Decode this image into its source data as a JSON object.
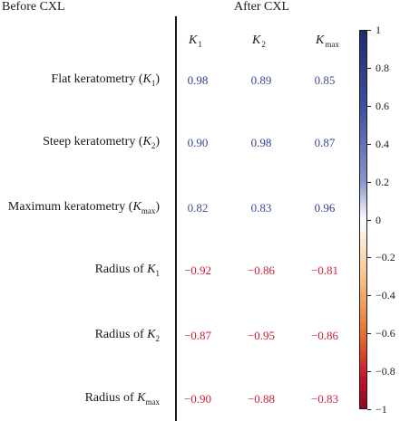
{
  "headers": {
    "left": "Before CXL",
    "right": "After CXL"
  },
  "columns": [
    {
      "base": "K",
      "sub": "1"
    },
    {
      "base": "K",
      "sub": "2"
    },
    {
      "base": "K",
      "sub": "max"
    }
  ],
  "rows": [
    {
      "prefix": "Flat keratometry (",
      "var": "K",
      "sub": "1",
      "suffix": ")"
    },
    {
      "prefix": "Steep keratometry (",
      "var": "K",
      "sub": "2",
      "suffix": ")"
    },
    {
      "prefix": "Maximum keratometry (",
      "var": "K",
      "sub": "max",
      "suffix": ")"
    },
    {
      "prefix": "Radius of ",
      "var": "K",
      "sub": "1",
      "suffix": ""
    },
    {
      "prefix": "Radius of ",
      "var": "K",
      "sub": "2",
      "suffix": ""
    },
    {
      "prefix": "Radius of ",
      "var": "K",
      "sub": "max",
      "suffix": ""
    }
  ],
  "chart_data": {
    "type": "table",
    "values": [
      [
        0.98,
        0.89,
        0.85
      ],
      [
        0.9,
        0.98,
        0.87
      ],
      [
        0.82,
        0.83,
        0.96
      ],
      [
        -0.92,
        -0.86,
        -0.81
      ],
      [
        -0.87,
        -0.95,
        -0.86
      ],
      [
        -0.9,
        -0.88,
        -0.83
      ]
    ],
    "labels": [
      [
        "0.98",
        "0.89",
        "0.85"
      ],
      [
        "0.90",
        "0.98",
        "0.87"
      ],
      [
        "0.82",
        "0.83",
        "0.96"
      ],
      [
        "−0.92",
        "−0.86",
        "−0.81"
      ],
      [
        "−0.87",
        "−0.95",
        "−0.86"
      ],
      [
        "−0.90",
        "−0.88",
        "−0.83"
      ]
    ],
    "colorbar": {
      "range": [
        -1,
        1
      ],
      "ticks": [
        1,
        0.8,
        0.6,
        0.4,
        0.2,
        0,
        -0.2,
        -0.4,
        -0.6,
        -0.8,
        -1
      ],
      "tick_labels": [
        "1",
        "0.8",
        "0.6",
        "0.4",
        "0.2",
        "0",
        "−0.2",
        "−0.4",
        "−0.6",
        "−0.8",
        "−1"
      ],
      "positive_color": "#2b3d8f",
      "mid_color": "#ffffff",
      "negative_color": "#c8102e"
    }
  }
}
